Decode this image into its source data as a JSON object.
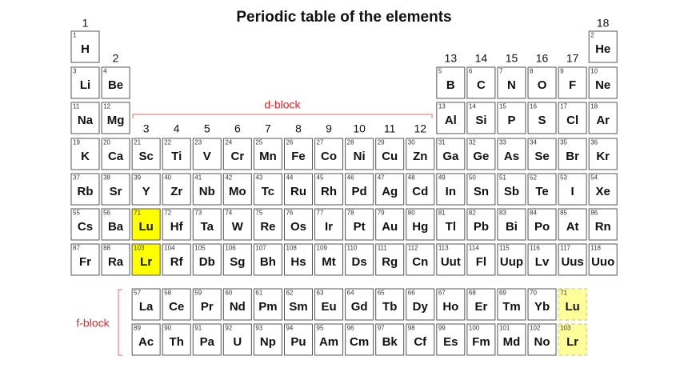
{
  "title": "Periodic table of the elements",
  "d_block_label": "d-block",
  "f_block_label": "f-block",
  "groups": [
    "1",
    "2",
    "3",
    "4",
    "5",
    "6",
    "7",
    "8",
    "9",
    "10",
    "11",
    "12",
    "13",
    "14",
    "15",
    "16",
    "17",
    "18"
  ],
  "main_rows": [
    [
      {
        "number": 1,
        "symbol": "H"
      },
      {
        "number": 2,
        "symbol": "He"
      }
    ],
    [
      {
        "number": 3,
        "symbol": "Li"
      },
      {
        "number": 4,
        "symbol": "Be"
      },
      {
        "number": 5,
        "symbol": "B"
      },
      {
        "number": 6,
        "symbol": "C"
      },
      {
        "number": 7,
        "symbol": "N"
      },
      {
        "number": 8,
        "symbol": "O"
      },
      {
        "number": 9,
        "symbol": "F"
      },
      {
        "number": 10,
        "symbol": "Ne"
      }
    ],
    [
      {
        "number": 11,
        "symbol": "Na"
      },
      {
        "number": 12,
        "symbol": "Mg"
      },
      {
        "number": 13,
        "symbol": "Al"
      },
      {
        "number": 14,
        "symbol": "Si"
      },
      {
        "number": 15,
        "symbol": "P"
      },
      {
        "number": 16,
        "symbol": "S"
      },
      {
        "number": 17,
        "symbol": "Cl"
      },
      {
        "number": 18,
        "symbol": "Ar"
      }
    ],
    [
      {
        "number": 19,
        "symbol": "K"
      },
      {
        "number": 20,
        "symbol": "Ca"
      },
      {
        "number": 21,
        "symbol": "Sc"
      },
      {
        "number": 22,
        "symbol": "Ti"
      },
      {
        "number": 23,
        "symbol": "V"
      },
      {
        "number": 24,
        "symbol": "Cr"
      },
      {
        "number": 25,
        "symbol": "Mn"
      },
      {
        "number": 26,
        "symbol": "Fe"
      },
      {
        "number": 27,
        "symbol": "Co"
      },
      {
        "number": 28,
        "symbol": "Ni"
      },
      {
        "number": 29,
        "symbol": "Cu"
      },
      {
        "number": 30,
        "symbol": "Zn"
      },
      {
        "number": 31,
        "symbol": "Ga"
      },
      {
        "number": 32,
        "symbol": "Ge"
      },
      {
        "number": 33,
        "symbol": "As"
      },
      {
        "number": 34,
        "symbol": "Se"
      },
      {
        "number": 35,
        "symbol": "Br"
      },
      {
        "number": 36,
        "symbol": "Kr"
      }
    ],
    [
      {
        "number": 37,
        "symbol": "Rb"
      },
      {
        "number": 38,
        "symbol": "Sr"
      },
      {
        "number": 39,
        "symbol": "Y"
      },
      {
        "number": 40,
        "symbol": "Zr"
      },
      {
        "number": 41,
        "symbol": "Nb"
      },
      {
        "number": 42,
        "symbol": "Mo"
      },
      {
        "number": 43,
        "symbol": "Tc"
      },
      {
        "number": 44,
        "symbol": "Ru"
      },
      {
        "number": 45,
        "symbol": "Rh"
      },
      {
        "number": 46,
        "symbol": "Pd"
      },
      {
        "number": 47,
        "symbol": "Ag"
      },
      {
        "number": 48,
        "symbol": "Cd"
      },
      {
        "number": 49,
        "symbol": "In"
      },
      {
        "number": 50,
        "symbol": "Sn"
      },
      {
        "number": 51,
        "symbol": "Sb"
      },
      {
        "number": 52,
        "symbol": "Te"
      },
      {
        "number": 53,
        "symbol": "I"
      },
      {
        "number": 54,
        "symbol": "Xe"
      }
    ],
    [
      {
        "number": 55,
        "symbol": "Cs"
      },
      {
        "number": 56,
        "symbol": "Ba"
      },
      {
        "number": 71,
        "symbol": "Lu",
        "highlighted": true
      },
      {
        "number": 72,
        "symbol": "Hf"
      },
      {
        "number": 73,
        "symbol": "Ta"
      },
      {
        "number": 74,
        "symbol": "W"
      },
      {
        "number": 75,
        "symbol": "Re"
      },
      {
        "number": 76,
        "symbol": "Os"
      },
      {
        "number": 77,
        "symbol": "Ir"
      },
      {
        "number": 78,
        "symbol": "Pt"
      },
      {
        "number": 79,
        "symbol": "Au"
      },
      {
        "number": 80,
        "symbol": "Hg"
      },
      {
        "number": 81,
        "symbol": "Tl"
      },
      {
        "number": 82,
        "symbol": "Pb"
      },
      {
        "number": 83,
        "symbol": "Bi"
      },
      {
        "number": 84,
        "symbol": "Po"
      },
      {
        "number": 85,
        "symbol": "At"
      },
      {
        "number": 86,
        "symbol": "Rn"
      }
    ],
    [
      {
        "number": 87,
        "symbol": "Fr"
      },
      {
        "number": 88,
        "symbol": "Ra"
      },
      {
        "number": 103,
        "symbol": "Lr",
        "highlighted": true
      },
      {
        "number": 104,
        "symbol": "Rf"
      },
      {
        "number": 105,
        "symbol": "Db"
      },
      {
        "number": 106,
        "symbol": "Sg"
      },
      {
        "number": 107,
        "symbol": "Bh"
      },
      {
        "number": 108,
        "symbol": "Hs"
      },
      {
        "number": 109,
        "symbol": "Mt"
      },
      {
        "number": 110,
        "symbol": "Ds"
      },
      {
        "number": 111,
        "symbol": "Rg"
      },
      {
        "number": 112,
        "symbol": "Cn"
      },
      {
        "number": 113,
        "symbol": "Uut"
      },
      {
        "number": 114,
        "symbol": "Fl"
      },
      {
        "number": 115,
        "symbol": "Uup"
      },
      {
        "number": 116,
        "symbol": "Lv"
      },
      {
        "number": 117,
        "symbol": "Uus"
      },
      {
        "number": 118,
        "symbol": "Uuo"
      }
    ]
  ],
  "f_rows": [
    [
      {
        "number": 57,
        "symbol": "La"
      },
      {
        "number": 58,
        "symbol": "Ce"
      },
      {
        "number": 59,
        "symbol": "Pr"
      },
      {
        "number": 60,
        "symbol": "Nd"
      },
      {
        "number": 61,
        "symbol": "Pm"
      },
      {
        "number": 62,
        "symbol": "Sm"
      },
      {
        "number": 63,
        "symbol": "Eu"
      },
      {
        "number": 64,
        "symbol": "Gd"
      },
      {
        "number": 65,
        "symbol": "Tb"
      },
      {
        "number": 66,
        "symbol": "Dy"
      },
      {
        "number": 67,
        "symbol": "Ho"
      },
      {
        "number": 68,
        "symbol": "Er"
      },
      {
        "number": 69,
        "symbol": "Tm"
      },
      {
        "number": 70,
        "symbol": "Yb"
      },
      {
        "number": 71,
        "symbol": "Lu",
        "highlighted": true
      }
    ],
    [
      {
        "number": 89,
        "symbol": "Ac"
      },
      {
        "number": 90,
        "symbol": "Th"
      },
      {
        "number": 91,
        "symbol": "Pa"
      },
      {
        "number": 92,
        "symbol": "U"
      },
      {
        "number": 93,
        "symbol": "Np"
      },
      {
        "number": 94,
        "symbol": "Pu"
      },
      {
        "number": 95,
        "symbol": "Am"
      },
      {
        "number": 96,
        "symbol": "Cm"
      },
      {
        "number": 97,
        "symbol": "Bk"
      },
      {
        "number": 98,
        "symbol": "Cf"
      },
      {
        "number": 99,
        "symbol": "Es"
      },
      {
        "number": 100,
        "symbol": "Fm"
      },
      {
        "number": 101,
        "symbol": "Md"
      },
      {
        "number": 102,
        "symbol": "No"
      },
      {
        "number": 103,
        "symbol": "Lr",
        "highlighted": true
      }
    ]
  ]
}
